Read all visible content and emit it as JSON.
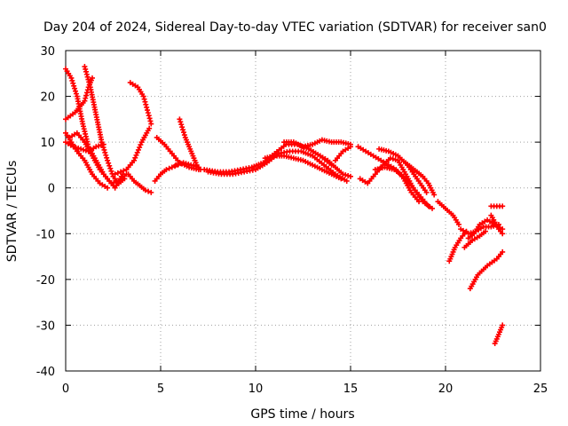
{
  "chart_data": {
    "type": "scatter",
    "title": "Day 204 of 2024, Sidereal Day-to-day VTEC variation (SDTVAR) for receiver san0",
    "xlabel": "GPS time / hours",
    "ylabel": "SDTVAR / TECUs",
    "xlim": [
      0,
      25
    ],
    "ylim": [
      -40,
      30
    ],
    "xticks": [
      "0",
      "5",
      "10",
      "15",
      "20",
      "25"
    ],
    "yticks": [
      "30",
      "20",
      "10",
      "0",
      "-10",
      "-20",
      "-30",
      "-40"
    ],
    "grid": true,
    "color": "#ff0000",
    "marker": "plus",
    "series": [
      {
        "name": "s1",
        "x": [
          0.0,
          0.3,
          0.6,
          0.9,
          1.2,
          1.6,
          2.0,
          2.4,
          2.8,
          3.2
        ],
        "y": [
          26,
          24,
          20,
          14,
          9,
          6,
          3,
          1,
          1.5,
          3
        ]
      },
      {
        "name": "s2",
        "x": [
          0.0,
          0.5,
          1.0,
          1.2,
          1.4
        ],
        "y": [
          15,
          16.5,
          19,
          22,
          24
        ]
      },
      {
        "name": "s3",
        "x": [
          1.0,
          1.3,
          1.6,
          1.9,
          2.2,
          2.5,
          2.8,
          3.1
        ],
        "y": [
          26.5,
          22,
          16,
          10,
          6,
          2.5,
          1,
          2
        ]
      },
      {
        "name": "s4",
        "x": [
          0.0,
          0.3,
          0.6,
          1.0,
          1.4,
          1.8,
          2.2
        ],
        "y": [
          12,
          10,
          8,
          6,
          3,
          1,
          0
        ]
      },
      {
        "name": "s5",
        "x": [
          0.0,
          0.4,
          0.8,
          1.2,
          1.6,
          2.0
        ],
        "y": [
          10,
          9,
          8.5,
          8,
          9,
          9.5
        ]
      },
      {
        "name": "s6",
        "x": [
          0.2,
          0.6,
          1.0,
          1.4,
          1.8,
          2.2,
          2.6,
          3.0
        ],
        "y": [
          11,
          12,
          10,
          7,
          4,
          2,
          0,
          3
        ]
      },
      {
        "name": "s7",
        "x": [
          2.6,
          2.9,
          3.2,
          3.6,
          4.0,
          4.4
        ],
        "y": [
          3,
          3.5,
          4,
          6,
          10,
          13
        ]
      },
      {
        "name": "s8",
        "x": [
          3.4,
          3.8,
          4.1,
          4.3,
          4.5
        ],
        "y": [
          23,
          22,
          20,
          17,
          14
        ]
      },
      {
        "name": "s9",
        "x": [
          3.3,
          3.6,
          3.9,
          4.2,
          4.5
        ],
        "y": [
          3,
          1.5,
          0.5,
          -0.5,
          -1
        ]
      },
      {
        "name": "s10",
        "x": [
          4.7,
          5.0,
          5.3,
          5.6,
          5.9
        ],
        "y": [
          1.5,
          3,
          4,
          4.5,
          5
        ]
      },
      {
        "name": "s11",
        "x": [
          4.8,
          5.2,
          5.6,
          6.0,
          6.5,
          7.0
        ],
        "y": [
          11,
          9.5,
          7.5,
          5.5,
          4.5,
          4
        ]
      },
      {
        "name": "s12",
        "x": [
          6.0,
          6.3,
          6.6,
          6.9,
          7.1
        ],
        "y": [
          15,
          11,
          8,
          5,
          4
        ]
      },
      {
        "name": "s13",
        "x": [
          5.8,
          6.2,
          6.6,
          7.0
        ],
        "y": [
          5,
          5.5,
          5,
          4.5
        ]
      },
      {
        "name": "s14",
        "x": [
          7.3,
          8.0,
          8.6,
          9.2,
          9.8,
          10.4,
          11.0,
          11.6,
          12.2,
          12.8,
          13.4,
          14.0
        ],
        "y": [
          4,
          3.5,
          3.5,
          4,
          4.5,
          5.5,
          7.5,
          9.5,
          9.5,
          8.5,
          7,
          5
        ]
      },
      {
        "name": "s15",
        "x": [
          7.5,
          8.2,
          8.8,
          9.4,
          10.0,
          10.6,
          11.2,
          11.8,
          12.4,
          13.0,
          13.6,
          14.2,
          14.8
        ],
        "y": [
          3.5,
          3,
          3,
          3.5,
          4,
          5.5,
          7.5,
          8,
          8,
          7,
          5,
          3,
          1.5
        ]
      },
      {
        "name": "s16",
        "x": [
          10.5,
          11.0,
          11.5,
          12.0,
          12.5,
          13.0,
          13.5,
          14.0,
          14.5
        ],
        "y": [
          6.5,
          7,
          7,
          6.5,
          6,
          5,
          4,
          3,
          2
        ]
      },
      {
        "name": "s17",
        "x": [
          11.5,
          12.0,
          12.5,
          13.0,
          13.5,
          14.0,
          14.5,
          15.0
        ],
        "y": [
          10,
          10,
          9,
          9.5,
          10.5,
          10,
          10,
          9.5
        ]
      },
      {
        "name": "s18",
        "x": [
          13.4,
          13.8,
          14.2,
          14.6,
          15.0
        ],
        "y": [
          7,
          6,
          4.5,
          3,
          2.5
        ]
      },
      {
        "name": "s19",
        "x": [
          14.2,
          14.6,
          15.0
        ],
        "y": [
          6,
          8,
          9
        ]
      },
      {
        "name": "s20",
        "x": [
          15.4,
          15.8,
          16.2,
          16.6,
          17.0,
          17.4,
          17.8,
          18.2,
          18.6
        ],
        "y": [
          9,
          8,
          7,
          6,
          5,
          4,
          2,
          -1,
          -3
        ]
      },
      {
        "name": "s21",
        "x": [
          15.5,
          15.9,
          16.3,
          16.7,
          17.1,
          17.5,
          17.9,
          18.3,
          18.7,
          19.1
        ],
        "y": [
          2,
          1,
          3,
          5,
          6.5,
          6,
          3,
          0,
          -2,
          -4
        ]
      },
      {
        "name": "s22",
        "x": [
          16.3,
          16.8,
          17.3,
          17.8,
          18.3,
          18.8,
          19.3
        ],
        "y": [
          4,
          4.5,
          4,
          2.5,
          0,
          -3,
          -4.5
        ]
      },
      {
        "name": "s23",
        "x": [
          16.5,
          17.0,
          17.5,
          18.0,
          18.5,
          19.0
        ],
        "y": [
          8.5,
          8,
          7,
          5,
          2,
          -1
        ]
      },
      {
        "name": "s24",
        "x": [
          17.9,
          18.2,
          18.5,
          18.8,
          19.1,
          19.4
        ],
        "y": [
          5.5,
          4.5,
          3.5,
          2.5,
          1,
          -1.5
        ]
      },
      {
        "name": "s25",
        "x": [
          19.6,
          20.0,
          20.4,
          20.7
        ],
        "y": [
          -3,
          -4.5,
          -6,
          -8
        ]
      },
      {
        "name": "s26",
        "x": [
          20.2,
          20.5,
          20.8,
          21.1
        ],
        "y": [
          -16,
          -13,
          -11,
          -9.5
        ]
      },
      {
        "name": "s27",
        "x": [
          20.8,
          21.2,
          21.6,
          22.0,
          22.4,
          22.8
        ],
        "y": [
          -9,
          -10,
          -9.5,
          -8.5,
          -8.5,
          -8
        ]
      },
      {
        "name": "s28",
        "x": [
          21.0,
          21.4,
          21.8,
          22.1
        ],
        "y": [
          -13,
          -11.5,
          -10.5,
          -9.5
        ]
      },
      {
        "name": "s29",
        "x": [
          21.2,
          21.5,
          21.8,
          22.2,
          22.6,
          23.0
        ],
        "y": [
          -11,
          -10,
          -8,
          -7,
          -8,
          -9
        ]
      },
      {
        "name": "s30",
        "x": [
          21.3,
          21.7,
          22.2,
          22.7,
          23.0
        ],
        "y": [
          -22,
          -19,
          -17,
          -15.5,
          -14
        ]
      },
      {
        "name": "s31",
        "x": [
          22.4,
          22.6,
          22.8,
          23.0
        ],
        "y": [
          -6,
          -7.5,
          -9,
          -10
        ]
      },
      {
        "name": "s32",
        "x": [
          22.4,
          22.7,
          23.0
        ],
        "y": [
          -4,
          -4,
          -4
        ]
      },
      {
        "name": "s33",
        "x": [
          22.6,
          22.8,
          23.0
        ],
        "y": [
          -34,
          -32,
          -30
        ]
      }
    ]
  }
}
